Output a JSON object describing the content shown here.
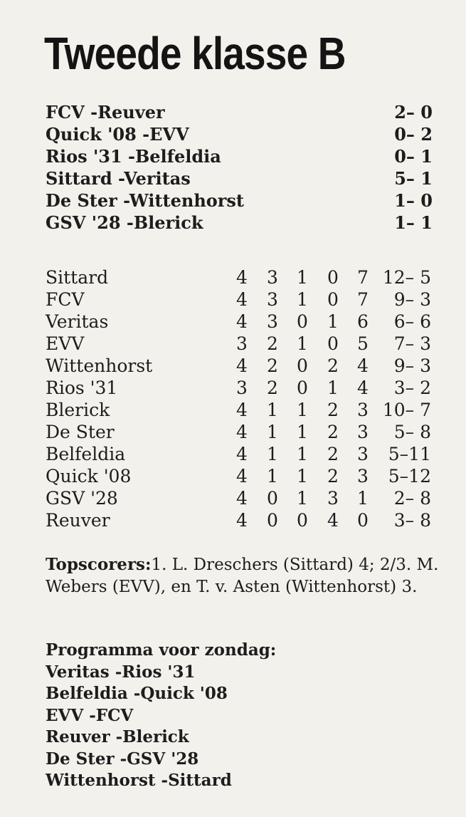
{
  "title": "Tweede klasse B",
  "results": [
    {
      "match": "FCV -Reuver",
      "score": "2– 0"
    },
    {
      "match": "Quick '08 -EVV",
      "score": "0– 2"
    },
    {
      "match": "Rios '31 -Belfeldia",
      "score": "0– 1"
    },
    {
      "match": "Sittard -Veritas",
      "score": "5– 1"
    },
    {
      "match": "De Ster -Wittenhorst",
      "score": "1– 0"
    },
    {
      "match": "GSV '28 -Blerick",
      "score": "1– 1"
    }
  ],
  "standings": [
    {
      "team": "Sittard",
      "p": "4",
      "w": "3",
      "d": "1",
      "l": "0",
      "pts": "7",
      "goals": "12– 5"
    },
    {
      "team": "FCV",
      "p": "4",
      "w": "3",
      "d": "1",
      "l": "0",
      "pts": "7",
      "goals": "9– 3"
    },
    {
      "team": "Veritas",
      "p": "4",
      "w": "3",
      "d": "0",
      "l": "1",
      "pts": "6",
      "goals": "6– 6"
    },
    {
      "team": "EVV",
      "p": "3",
      "w": "2",
      "d": "1",
      "l": "0",
      "pts": "5",
      "goals": "7– 3"
    },
    {
      "team": "Wittenhorst",
      "p": "4",
      "w": "2",
      "d": "0",
      "l": "2",
      "pts": "4",
      "goals": "9– 3"
    },
    {
      "team": "Rios '31",
      "p": "3",
      "w": "2",
      "d": "0",
      "l": "1",
      "pts": "4",
      "goals": "3– 2"
    },
    {
      "team": "Blerick",
      "p": "4",
      "w": "1",
      "d": "1",
      "l": "2",
      "pts": "3",
      "goals": "10– 7"
    },
    {
      "team": "De Ster",
      "p": "4",
      "w": "1",
      "d": "1",
      "l": "2",
      "pts": "3",
      "goals": "5– 8"
    },
    {
      "team": "Belfeldia",
      "p": "4",
      "w": "1",
      "d": "1",
      "l": "2",
      "pts": "3",
      "goals": "5–11"
    },
    {
      "team": "Quick '08",
      "p": "4",
      "w": "1",
      "d": "1",
      "l": "2",
      "pts": "3",
      "goals": "5–12"
    },
    {
      "team": "GSV '28",
      "p": "4",
      "w": "0",
      "d": "1",
      "l": "3",
      "pts": "1",
      "goals": "2– 8"
    },
    {
      "team": "Reuver",
      "p": "4",
      "w": "0",
      "d": "0",
      "l": "4",
      "pts": "0",
      "goals": "3– 8"
    }
  ],
  "topscorers": {
    "label": "Topscorers:",
    "text": "1. L. Dreschers (Sittard) 4; 2/3. M. Webers (EVV), en T. v. Asten (Wittenhorst) 3."
  },
  "programma": {
    "heading": "Programma voor zondag:",
    "matches": [
      "Veritas -Rios '31",
      "Belfeldia -Quick '08",
      "EVV -FCV",
      "Reuver -Blerick",
      "De Ster -GSV '28",
      "Wittenhorst -Sittard"
    ]
  }
}
